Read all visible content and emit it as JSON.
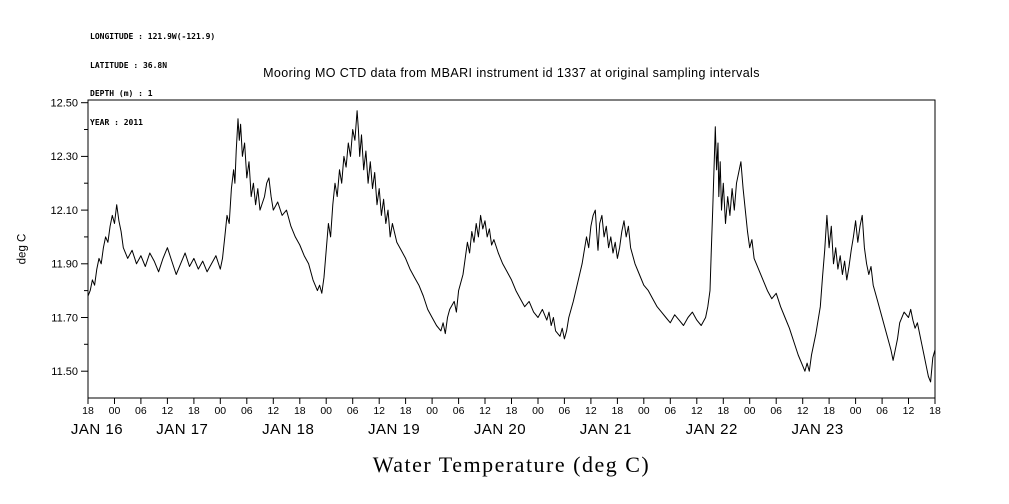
{
  "header": {
    "longitude": "LONGITUDE : 121.9W(-121.9)",
    "latitude": "LATITUDE : 36.8N",
    "depth": "DEPTH (m) : 1",
    "year": "YEAR : 2011"
  },
  "title": "Mooring MO CTD data from MBARI instrument id 1337 at original sampling intervals",
  "chart_data": {
    "type": "line",
    "title": "Mooring MO CTD data from MBARI instrument id 1337 at original sampling intervals",
    "xlabel": "Water Temperature (deg C)",
    "ylabel": "deg C",
    "line_color": "#000000",
    "background_color": "#ffffff",
    "grid": false,
    "legend": false,
    "ylim": [
      11.4,
      12.51
    ],
    "xlim_hours": [
      0,
      192
    ],
    "x_start_label_hour": "18",
    "x_hour_tick_step": 6,
    "x_hour_labels_cycle": [
      "18",
      "00",
      "06",
      "12"
    ],
    "y_ticks": [
      11.5,
      11.7,
      11.9,
      12.1,
      12.3,
      12.5
    ],
    "y_tick_labels": [
      "11.50",
      "11.70",
      "11.90",
      "12.10",
      "12.30",
      "12.50"
    ],
    "y_minor_ticks": [
      11.6,
      11.8,
      12.0,
      12.2,
      12.4
    ],
    "date_labels": [
      {
        "hour": 6,
        "label": "JAN 16"
      },
      {
        "hour": 30,
        "label": "JAN 17"
      },
      {
        "hour": 54,
        "label": "JAN 18"
      },
      {
        "hour": 78,
        "label": "JAN 19"
      },
      {
        "hour": 102,
        "label": "JAN 20"
      },
      {
        "hour": 126,
        "label": "JAN 21"
      },
      {
        "hour": 150,
        "label": "JAN 22"
      },
      {
        "hour": 174,
        "label": "JAN 23"
      }
    ],
    "series": [
      {
        "name": "water_temperature_degC",
        "points": [
          [
            0,
            11.78
          ],
          [
            0.5,
            11.8
          ],
          [
            1,
            11.84
          ],
          [
            1.5,
            11.82
          ],
          [
            2,
            11.88
          ],
          [
            2.5,
            11.92
          ],
          [
            3,
            11.9
          ],
          [
            3.5,
            11.96
          ],
          [
            4,
            12.0
          ],
          [
            4.5,
            11.98
          ],
          [
            5,
            12.04
          ],
          [
            5.5,
            12.08
          ],
          [
            6,
            12.05
          ],
          [
            6.5,
            12.12
          ],
          [
            7,
            12.06
          ],
          [
            7.5,
            12.02
          ],
          [
            8,
            11.96
          ],
          [
            9,
            11.92
          ],
          [
            10,
            11.95
          ],
          [
            11,
            11.9
          ],
          [
            12,
            11.93
          ],
          [
            13,
            11.89
          ],
          [
            14,
            11.94
          ],
          [
            15,
            11.91
          ],
          [
            16,
            11.87
          ],
          [
            17,
            11.92
          ],
          [
            18,
            11.96
          ],
          [
            19,
            11.91
          ],
          [
            20,
            11.86
          ],
          [
            21,
            11.9
          ],
          [
            22,
            11.94
          ],
          [
            23,
            11.89
          ],
          [
            24,
            11.92
          ],
          [
            25,
            11.88
          ],
          [
            26,
            11.91
          ],
          [
            27,
            11.87
          ],
          [
            28,
            11.9
          ],
          [
            29,
            11.93
          ],
          [
            30,
            11.88
          ],
          [
            30.5,
            11.92
          ],
          [
            31,
            12.0
          ],
          [
            31.5,
            12.08
          ],
          [
            32,
            12.05
          ],
          [
            32.5,
            12.18
          ],
          [
            33,
            12.25
          ],
          [
            33.3,
            12.2
          ],
          [
            33.6,
            12.32
          ],
          [
            34,
            12.44
          ],
          [
            34.3,
            12.36
          ],
          [
            34.6,
            12.42
          ],
          [
            35,
            12.3
          ],
          [
            35.5,
            12.35
          ],
          [
            36,
            12.22
          ],
          [
            36.5,
            12.28
          ],
          [
            37,
            12.15
          ],
          [
            37.5,
            12.2
          ],
          [
            38,
            12.12
          ],
          [
            38.5,
            12.18
          ],
          [
            39,
            12.1
          ],
          [
            40,
            12.15
          ],
          [
            40.5,
            12.2
          ],
          [
            41,
            12.22
          ],
          [
            41.5,
            12.15
          ],
          [
            42,
            12.1
          ],
          [
            43,
            12.13
          ],
          [
            44,
            12.08
          ],
          [
            45,
            12.1
          ],
          [
            46,
            12.04
          ],
          [
            47,
            12.0
          ],
          [
            48,
            11.97
          ],
          [
            49,
            11.93
          ],
          [
            50,
            11.9
          ],
          [
            51,
            11.84
          ],
          [
            52,
            11.8
          ],
          [
            52.5,
            11.82
          ],
          [
            53,
            11.79
          ],
          [
            53.5,
            11.85
          ],
          [
            54,
            11.95
          ],
          [
            54.5,
            12.05
          ],
          [
            55,
            12.0
          ],
          [
            55.5,
            12.12
          ],
          [
            56,
            12.2
          ],
          [
            56.5,
            12.15
          ],
          [
            57,
            12.25
          ],
          [
            57.5,
            12.2
          ],
          [
            58,
            12.3
          ],
          [
            58.5,
            12.26
          ],
          [
            59,
            12.35
          ],
          [
            59.5,
            12.3
          ],
          [
            60,
            12.4
          ],
          [
            60.5,
            12.36
          ],
          [
            61,
            12.47
          ],
          [
            61.3,
            12.4
          ],
          [
            61.6,
            12.3
          ],
          [
            62,
            12.38
          ],
          [
            62.5,
            12.25
          ],
          [
            63,
            12.32
          ],
          [
            63.5,
            12.2
          ],
          [
            64,
            12.28
          ],
          [
            64.5,
            12.18
          ],
          [
            65,
            12.24
          ],
          [
            65.5,
            12.12
          ],
          [
            66,
            12.18
          ],
          [
            66.5,
            12.08
          ],
          [
            67,
            12.14
          ],
          [
            67.5,
            12.05
          ],
          [
            68,
            12.1
          ],
          [
            68.5,
            12.0
          ],
          [
            69,
            12.05
          ],
          [
            70,
            11.98
          ],
          [
            71,
            11.95
          ],
          [
            72,
            11.92
          ],
          [
            73,
            11.88
          ],
          [
            74,
            11.85
          ],
          [
            75,
            11.82
          ],
          [
            76,
            11.78
          ],
          [
            77,
            11.73
          ],
          [
            78,
            11.7
          ],
          [
            79,
            11.67
          ],
          [
            80,
            11.65
          ],
          [
            80.5,
            11.68
          ],
          [
            81,
            11.64
          ],
          [
            81.5,
            11.7
          ],
          [
            82,
            11.73
          ],
          [
            83,
            11.76
          ],
          [
            83.5,
            11.72
          ],
          [
            84,
            11.8
          ],
          [
            85,
            11.86
          ],
          [
            85.5,
            11.92
          ],
          [
            86,
            11.98
          ],
          [
            86.5,
            11.94
          ],
          [
            87,
            12.02
          ],
          [
            87.5,
            11.98
          ],
          [
            88,
            12.05
          ],
          [
            88.5,
            12.0
          ],
          [
            89,
            12.08
          ],
          [
            89.5,
            12.03
          ],
          [
            90,
            12.06
          ],
          [
            90.5,
            12.0
          ],
          [
            91,
            12.03
          ],
          [
            91.5,
            11.97
          ],
          [
            92,
            11.99
          ],
          [
            93,
            11.94
          ],
          [
            94,
            11.9
          ],
          [
            95,
            11.87
          ],
          [
            96,
            11.84
          ],
          [
            97,
            11.8
          ],
          [
            98,
            11.77
          ],
          [
            99,
            11.74
          ],
          [
            100,
            11.76
          ],
          [
            101,
            11.72
          ],
          [
            102,
            11.7
          ],
          [
            103,
            11.73
          ],
          [
            104,
            11.69
          ],
          [
            104.5,
            11.72
          ],
          [
            105,
            11.67
          ],
          [
            105.5,
            11.7
          ],
          [
            106,
            11.65
          ],
          [
            107,
            11.63
          ],
          [
            107.5,
            11.66
          ],
          [
            108,
            11.62
          ],
          [
            108.5,
            11.65
          ],
          [
            109,
            11.7
          ],
          [
            110,
            11.76
          ],
          [
            111,
            11.83
          ],
          [
            112,
            11.9
          ],
          [
            112.5,
            11.95
          ],
          [
            113,
            12.0
          ],
          [
            113.5,
            11.96
          ],
          [
            114,
            12.04
          ],
          [
            114.5,
            12.08
          ],
          [
            115,
            12.1
          ],
          [
            115.3,
            12.02
          ],
          [
            115.6,
            11.95
          ],
          [
            116,
            12.05
          ],
          [
            116.5,
            12.08
          ],
          [
            117,
            12.0
          ],
          [
            117.5,
            12.04
          ],
          [
            118,
            11.96
          ],
          [
            118.5,
            12.0
          ],
          [
            119,
            11.94
          ],
          [
            119.5,
            11.98
          ],
          [
            120,
            11.92
          ],
          [
            120.5,
            11.96
          ],
          [
            121,
            12.02
          ],
          [
            121.5,
            12.06
          ],
          [
            122,
            12.0
          ],
          [
            122.5,
            12.04
          ],
          [
            123,
            11.96
          ],
          [
            124,
            11.9
          ],
          [
            125,
            11.86
          ],
          [
            126,
            11.82
          ],
          [
            127,
            11.8
          ],
          [
            128,
            11.77
          ],
          [
            129,
            11.74
          ],
          [
            130,
            11.72
          ],
          [
            131,
            11.7
          ],
          [
            132,
            11.68
          ],
          [
            133,
            11.71
          ],
          [
            134,
            11.69
          ],
          [
            135,
            11.67
          ],
          [
            136,
            11.7
          ],
          [
            137,
            11.72
          ],
          [
            138,
            11.69
          ],
          [
            139,
            11.67
          ],
          [
            140,
            11.7
          ],
          [
            140.5,
            11.74
          ],
          [
            141,
            11.8
          ],
          [
            141.3,
            11.95
          ],
          [
            141.6,
            12.1
          ],
          [
            142,
            12.3
          ],
          [
            142.2,
            12.41
          ],
          [
            142.5,
            12.25
          ],
          [
            142.8,
            12.35
          ],
          [
            143,
            12.15
          ],
          [
            143.3,
            12.28
          ],
          [
            143.6,
            12.1
          ],
          [
            144,
            12.2
          ],
          [
            144.5,
            12.05
          ],
          [
            145,
            12.15
          ],
          [
            145.5,
            12.08
          ],
          [
            146,
            12.18
          ],
          [
            146.5,
            12.1
          ],
          [
            147,
            12.2
          ],
          [
            147.5,
            12.24
          ],
          [
            148,
            12.28
          ],
          [
            148.5,
            12.18
          ],
          [
            149,
            12.1
          ],
          [
            149.5,
            12.02
          ],
          [
            150,
            11.96
          ],
          [
            150.5,
            11.99
          ],
          [
            151,
            11.92
          ],
          [
            152,
            11.88
          ],
          [
            153,
            11.84
          ],
          [
            154,
            11.8
          ],
          [
            155,
            11.77
          ],
          [
            156,
            11.79
          ],
          [
            157,
            11.74
          ],
          [
            158,
            11.7
          ],
          [
            159,
            11.66
          ],
          [
            160,
            11.61
          ],
          [
            161,
            11.56
          ],
          [
            162,
            11.52
          ],
          [
            162.5,
            11.5
          ],
          [
            163,
            11.53
          ],
          [
            163.5,
            11.5
          ],
          [
            164,
            11.56
          ],
          [
            165,
            11.64
          ],
          [
            166,
            11.74
          ],
          [
            166.5,
            11.85
          ],
          [
            167,
            11.95
          ],
          [
            167.5,
            12.08
          ],
          [
            168,
            11.96
          ],
          [
            168.5,
            12.04
          ],
          [
            169,
            11.9
          ],
          [
            169.5,
            11.96
          ],
          [
            170,
            11.88
          ],
          [
            170.5,
            11.93
          ],
          [
            171,
            11.86
          ],
          [
            171.5,
            11.91
          ],
          [
            172,
            11.84
          ],
          [
            172.5,
            11.89
          ],
          [
            173,
            11.95
          ],
          [
            173.5,
            12.0
          ],
          [
            174,
            12.06
          ],
          [
            174.5,
            11.98
          ],
          [
            175,
            12.04
          ],
          [
            175.5,
            12.08
          ],
          [
            176,
            11.96
          ],
          [
            176.5,
            11.9
          ],
          [
            177,
            11.86
          ],
          [
            177.5,
            11.89
          ],
          [
            178,
            11.82
          ],
          [
            179,
            11.76
          ],
          [
            180,
            11.7
          ],
          [
            181,
            11.64
          ],
          [
            182,
            11.58
          ],
          [
            182.5,
            11.54
          ],
          [
            183,
            11.58
          ],
          [
            183.5,
            11.62
          ],
          [
            184,
            11.68
          ],
          [
            185,
            11.72
          ],
          [
            186,
            11.7
          ],
          [
            186.5,
            11.73
          ],
          [
            187,
            11.69
          ],
          [
            187.5,
            11.66
          ],
          [
            188,
            11.68
          ],
          [
            188.5,
            11.64
          ],
          [
            189,
            11.6
          ],
          [
            189.5,
            11.56
          ],
          [
            190,
            11.52
          ],
          [
            190.5,
            11.48
          ],
          [
            191,
            11.46
          ],
          [
            191.5,
            11.55
          ],
          [
            192,
            11.58
          ]
        ]
      }
    ]
  }
}
